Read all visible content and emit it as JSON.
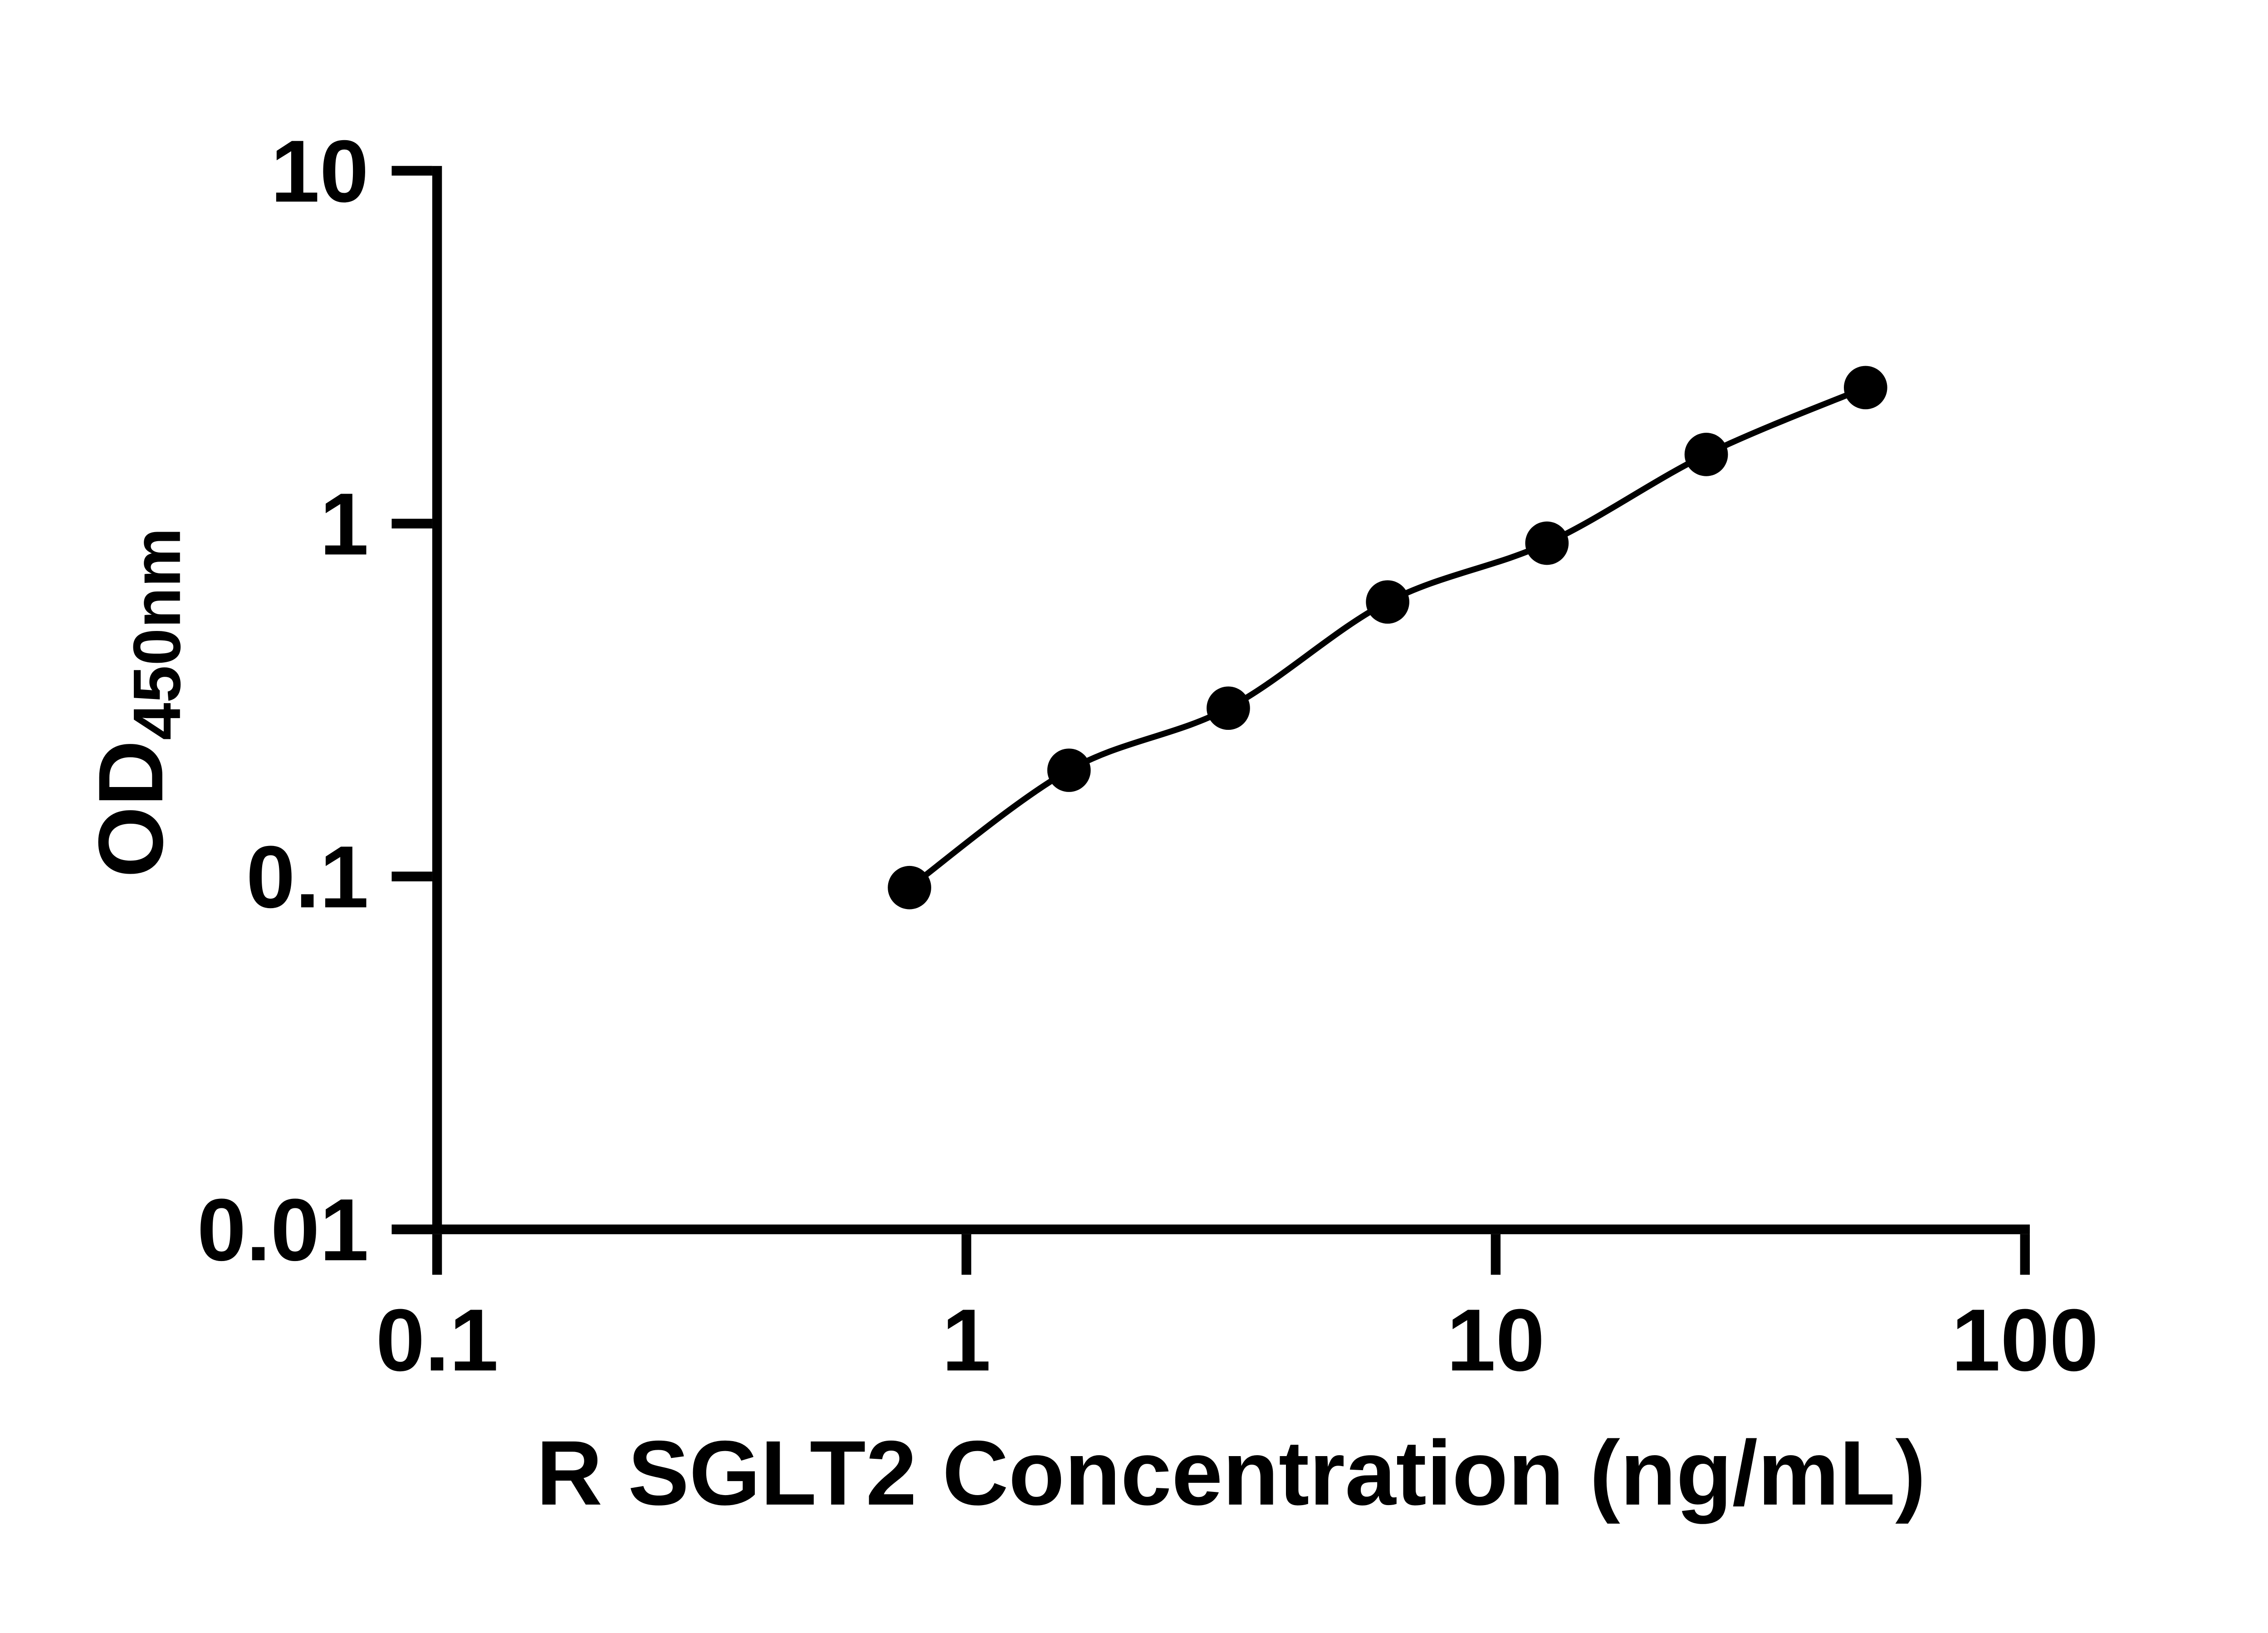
{
  "chart_data": {
    "type": "scatter",
    "title": "",
    "xlabel": "R SGLT2 Concentration (ng/mL)",
    "ylabel": {
      "main": "OD",
      "subscript": "450nm"
    },
    "x_scale": "log",
    "y_scale": "log",
    "xlim": [
      0.1,
      100
    ],
    "ylim": [
      0.01,
      10
    ],
    "x_ticks": [
      {
        "value": 0.1,
        "label": "0.1"
      },
      {
        "value": 1,
        "label": "1"
      },
      {
        "value": 10,
        "label": "10"
      },
      {
        "value": 100,
        "label": "100"
      }
    ],
    "y_ticks": [
      {
        "value": 0.01,
        "label": "0.01"
      },
      {
        "value": 0.1,
        "label": "0.1"
      },
      {
        "value": 1,
        "label": "1"
      },
      {
        "value": 10,
        "label": "10"
      }
    ],
    "grid": false,
    "legend": false,
    "series": [
      {
        "marker": "filled-circle",
        "color": "#000000",
        "connect": "fitted-curve",
        "points": [
          {
            "x": 0.781,
            "y": 0.093
          },
          {
            "x": 1.563,
            "y": 0.2
          },
          {
            "x": 3.125,
            "y": 0.3
          },
          {
            "x": 6.25,
            "y": 0.6
          },
          {
            "x": 12.5,
            "y": 0.88
          },
          {
            "x": 25,
            "y": 1.57
          },
          {
            "x": 50,
            "y": 2.43
          }
        ]
      }
    ],
    "colors": {
      "foreground": "#000000",
      "background": "#ffffff"
    }
  }
}
